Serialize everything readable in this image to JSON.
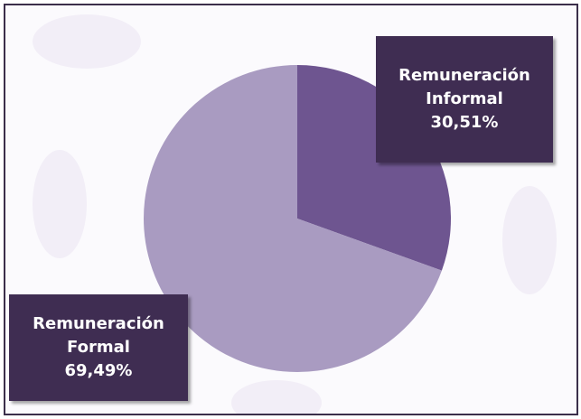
{
  "chart_data": {
    "type": "pie",
    "categories": [
      "Remuneración Informal",
      "Remuneración Formal"
    ],
    "values": [
      30.51,
      69.49
    ],
    "value_labels": [
      "30,51%",
      "69,49%"
    ],
    "colors": [
      "#6e5590",
      "#a99bc1"
    ]
  }
}
